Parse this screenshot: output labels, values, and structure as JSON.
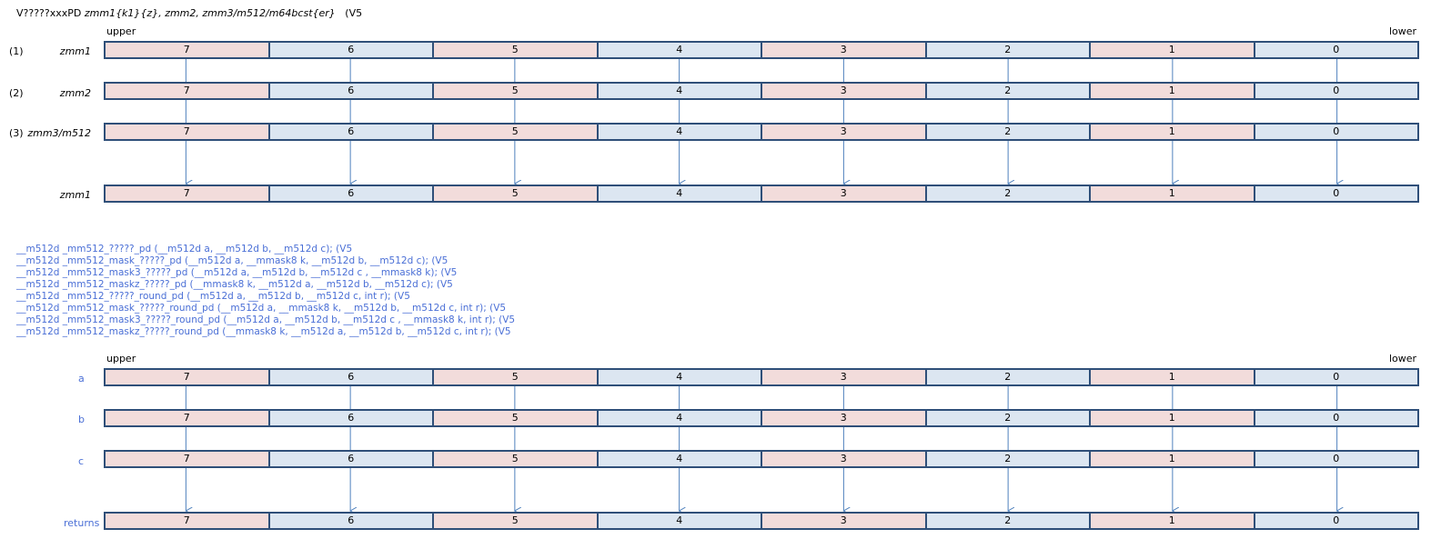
{
  "title_parts": {
    "mnemonic": "V?????xxxPD",
    "operands": "zmm1{k1}{z}, zmm2, zmm3/m512/m64bcst{er}",
    "tail": "(V5"
  },
  "top": {
    "upper": "upper",
    "lower": "lower",
    "rows": [
      {
        "num": "(1)",
        "name": "zmm1"
      },
      {
        "num": "(2)",
        "name": "zmm2"
      },
      {
        "num": "(3)",
        "name": "zmm3/m512"
      },
      {
        "num": "",
        "name": "zmm1"
      }
    ]
  },
  "cells": [
    "7",
    "6",
    "5",
    "4",
    "3",
    "2",
    "1",
    "0"
  ],
  "prototypes": [
    "__m512d  _mm512_?????_pd  (__m512d a, __m512d b, __m512d c);   (V5",
    "__m512d  _mm512_mask_?????_pd  (__m512d a, __mmask8 k, __m512d b, __m512d c);   (V5",
    "__m512d  _mm512_mask3_?????_pd  (__m512d a, __m512d b, __m512d c , __mmask8 k);   (V5",
    "__m512d  _mm512_maskz_?????_pd  (__mmask8 k, __m512d a, __m512d b, __m512d c);   (V5",
    "__m512d  _mm512_?????_round_pd  (__m512d a, __m512d b, __m512d c, int r);    (V5",
    "__m512d  _mm512_mask_?????_round_pd  (__m512d a, __mmask8 k, __m512d b, __m512d c, int r);   (V5",
    "__m512d  _mm512_mask3_?????_round_pd  (__m512d a, __m512d b, __m512d c , __mmask8 k, int r);   (V5",
    "__m512d  _mm512_maskz_?????_round_pd  (__mmask8 k, __m512d a, __m512d b, __m512d c, int r);   (V5"
  ],
  "bottom": {
    "upper": "upper",
    "lower": "lower",
    "rows": [
      {
        "name": "a"
      },
      {
        "name": "b"
      },
      {
        "name": "c"
      },
      {
        "name": "returns"
      }
    ]
  },
  "colors": {
    "border": "#2f4f79",
    "pink": "#f2dcdb",
    "light_blue": "#dce6f1",
    "arrow": "#4f81bd",
    "label_blue": "#4a6fd6"
  }
}
